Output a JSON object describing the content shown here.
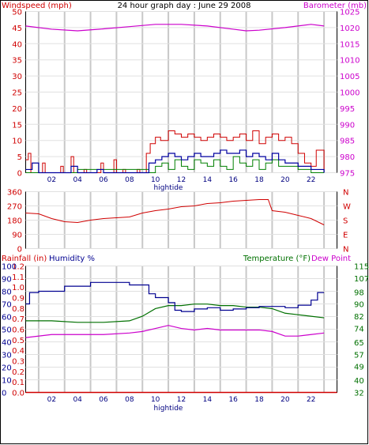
{
  "header": {
    "left_title": "Windspeed (mph)",
    "center_title": "24 hour graph day : June 29 2008",
    "right_title": "Barometer (mb)"
  },
  "footer_panel_labels": {
    "rainfall": "Rainfall (in)",
    "humidity": "Humidity %",
    "temperature": "Temperature (°F)",
    "dewpoint": "Dew Point"
  },
  "x_axis": {
    "ticks": [
      "02",
      "04",
      "06",
      "08",
      "10",
      "12",
      "14",
      "16",
      "18",
      "20",
      "22"
    ],
    "marker": "hightide"
  },
  "colors": {
    "wind": "#d00000",
    "wind_avg": "#0000a0",
    "wind_gust": "#008000",
    "barometer": "#cc00cc",
    "direction": "#d00000",
    "humidity": "#000090",
    "temperature": "#007000",
    "dewpoint": "#cc00cc",
    "rain": "#d00000",
    "grid": "#c8c8c8"
  },
  "chart_data": [
    {
      "type": "line",
      "id": "wind-baro",
      "xlim": [
        0,
        24
      ],
      "y_left": {
        "label": "Windspeed (mph)",
        "lim": [
          0,
          50
        ],
        "ticks": [
          0,
          5,
          10,
          15,
          20,
          25,
          30,
          35,
          40,
          45,
          50
        ]
      },
      "y_right": {
        "label": "Barometer (mb)",
        "lim": [
          975,
          1025
        ],
        "ticks": [
          975,
          980,
          985,
          990,
          995,
          1000,
          1005,
          1010,
          1015,
          1020,
          1025
        ]
      },
      "barometer": {
        "x": [
          0,
          2,
          4,
          6,
          8,
          10,
          12,
          14,
          16,
          17,
          18,
          20,
          22,
          23
        ],
        "y": [
          1020.5,
          1019.5,
          1019,
          1019.6,
          1020.3,
          1021,
          1021,
          1020.5,
          1019.5,
          1019,
          1019.2,
          1020,
          1021,
          1020.5
        ]
      },
      "wind_max": {
        "x": [
          0,
          0.2,
          0.4,
          1.3,
          1.5,
          2.7,
          2.9,
          3.5,
          3.7,
          4.5,
          4.7,
          5.8,
          6.0,
          6.8,
          7.0,
          7.5,
          7.7,
          8.6,
          8.8,
          9.3,
          9.6,
          10.0,
          10.4,
          11.0,
          11.5,
          12.0,
          12.5,
          13.0,
          13.5,
          14.0,
          14.5,
          15.0,
          15.5,
          16.0,
          16.5,
          17.0,
          17.5,
          18.0,
          18.5,
          19.0,
          19.5,
          20.0,
          20.5,
          21.0,
          21.5,
          22.0,
          22.4,
          23.0
        ],
        "y": [
          4,
          6,
          0,
          3,
          0,
          2,
          0,
          5,
          0,
          1,
          0,
          3,
          0,
          4,
          0,
          1,
          0,
          1,
          0,
          6,
          9,
          11,
          10,
          13,
          12,
          11,
          12,
          11,
          10,
          11,
          12,
          11,
          10,
          11,
          12,
          10,
          13,
          9,
          11,
          12,
          10,
          11,
          9,
          6,
          3,
          2,
          7,
          1
        ]
      },
      "wind_avg": {
        "x": [
          0,
          0.5,
          1,
          3.5,
          4,
          5.5,
          6,
          9,
          9.5,
          10,
          10.5,
          11,
          11.5,
          12,
          12.5,
          13,
          13.5,
          14,
          14.5,
          15,
          15.5,
          16,
          16.5,
          17,
          17.5,
          18,
          18.5,
          19,
          19.5,
          20,
          20.5,
          21,
          22,
          23
        ],
        "y": [
          1,
          3,
          0,
          2,
          0,
          1,
          0,
          0,
          3,
          4,
          5,
          6,
          5,
          4,
          5,
          6,
          5,
          5,
          6,
          7,
          6,
          6,
          7,
          5,
          6,
          5,
          4,
          6,
          4,
          3,
          3,
          2,
          1,
          0
        ]
      },
      "wind_gust": {
        "x": [
          0,
          3.5,
          4,
          9.5,
          10,
          10.5,
          11,
          11.5,
          12,
          12.5,
          13,
          13.5,
          14,
          14.5,
          15,
          15.5,
          16,
          16.5,
          17,
          17.5,
          18,
          18.5,
          19,
          19.5,
          20,
          21,
          22,
          23
        ],
        "y": [
          0,
          0,
          1,
          0,
          2,
          3,
          1,
          4,
          2,
          1,
          4,
          3,
          2,
          4,
          2,
          1,
          5,
          3,
          2,
          4,
          1,
          3,
          4,
          2,
          2,
          1,
          0,
          0
        ]
      }
    },
    {
      "type": "line",
      "id": "wind-direction",
      "xlim": [
        0,
        24
      ],
      "y_left": {
        "lim": [
          0,
          360
        ],
        "ticks": [
          0,
          90,
          180,
          270,
          360
        ]
      },
      "y_right": {
        "ticks": [
          "N",
          "W",
          "S",
          "E",
          "N"
        ]
      },
      "direction": {
        "x": [
          0,
          1,
          2,
          3,
          4,
          5,
          6,
          7,
          8,
          9,
          10,
          11,
          12,
          13,
          14,
          15,
          16,
          17,
          18,
          18.7,
          19,
          20,
          21,
          22,
          23
        ],
        "y": [
          225,
          220,
          190,
          170,
          165,
          180,
          190,
          195,
          200,
          225,
          240,
          250,
          265,
          270,
          285,
          290,
          300,
          305,
          310,
          310,
          240,
          230,
          210,
          190,
          150
        ]
      }
    },
    {
      "type": "line",
      "id": "rain-hum-temp",
      "xlim": [
        0,
        24
      ],
      "y_rain": {
        "label": "Rainfall (in)",
        "lim": [
          0,
          1.2
        ],
        "ticks": [
          0.0,
          0.1,
          0.2,
          0.3,
          0.4,
          0.5,
          0.6,
          0.7,
          0.8,
          0.9,
          1.0,
          1.1,
          1.2
        ]
      },
      "y_humidity": {
        "label": "Humidity %",
        "lim": [
          0,
          100
        ],
        "ticks": [
          0,
          10,
          20,
          30,
          40,
          50,
          60,
          70,
          80,
          90,
          100
        ]
      },
      "y_temp": {
        "label": "Temperature (°F)",
        "lim": [
          32,
          115
        ],
        "ticks": [
          32,
          40,
          49,
          57,
          65,
          74,
          82,
          90,
          98,
          107,
          115
        ]
      },
      "humidity": {
        "x": [
          0,
          0.3,
          1,
          3,
          5,
          8,
          9.5,
          10,
          11,
          11.5,
          12,
          13,
          14,
          15,
          16,
          17,
          18,
          20,
          21,
          22,
          22.5,
          23
        ],
        "y": [
          70,
          79,
          80,
          84,
          87,
          85,
          78,
          75,
          71,
          65,
          64,
          66,
          67,
          65,
          66,
          67,
          68,
          67,
          69,
          73,
          79,
          79
        ]
      },
      "temperature": {
        "x": [
          0,
          2,
          4,
          6,
          8,
          9,
          10,
          11,
          12,
          13,
          14,
          15,
          16,
          17,
          18,
          19,
          20,
          21,
          22,
          23
        ],
        "y": [
          79,
          79,
          78,
          78,
          79,
          82,
          87,
          89,
          89,
          90,
          90,
          89,
          89,
          88,
          88,
          87,
          84,
          83,
          82,
          81
        ]
      },
      "dewpoint": {
        "x": [
          0,
          2,
          4,
          6,
          8,
          9,
          10,
          11,
          12,
          13,
          14,
          15,
          16,
          17,
          18,
          19,
          20,
          21,
          22,
          23
        ],
        "y": [
          68,
          70,
          70,
          70,
          71,
          72,
          74,
          76,
          74,
          73,
          74,
          73,
          73,
          73,
          73,
          72,
          69,
          69,
          70,
          71
        ]
      },
      "rainfall": {
        "x": [
          0,
          24
        ],
        "y": [
          0,
          0
        ]
      }
    }
  ]
}
